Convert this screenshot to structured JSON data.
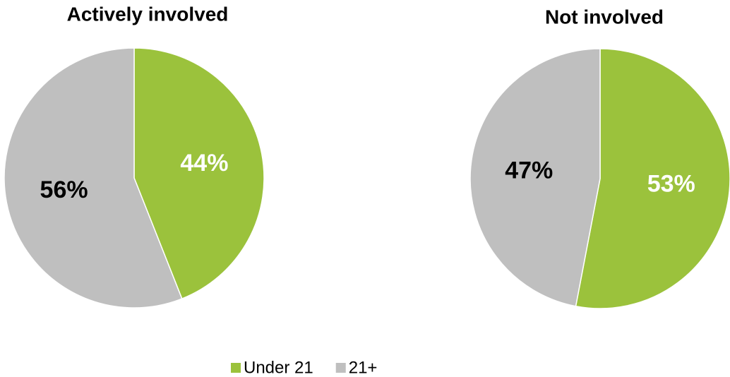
{
  "chart_data": [
    {
      "type": "pie",
      "title": "Actively involved",
      "categories": [
        "Under 21",
        "21+"
      ],
      "values": [
        44,
        56
      ],
      "value_labels": [
        "44%",
        "56%"
      ],
      "colors": [
        "#9bc23c",
        "#bfbfbf"
      ]
    },
    {
      "type": "pie",
      "title": "Not involved",
      "categories": [
        "Under 21",
        "21+"
      ],
      "values": [
        53,
        47
      ],
      "value_labels": [
        "53%",
        "47%"
      ],
      "colors": [
        "#9bc23c",
        "#bfbfbf"
      ]
    }
  ]
}
